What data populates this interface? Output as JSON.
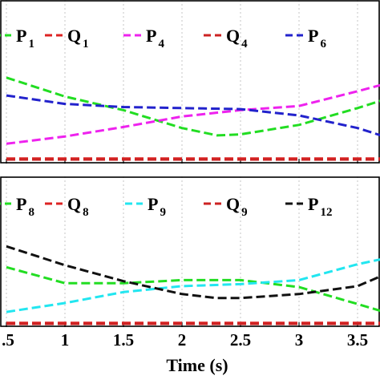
{
  "chart_data": [
    {
      "type": "line",
      "panel": "top",
      "xlim": [
        0.5,
        3.7
      ],
      "ylim": [
        0,
        1
      ],
      "grid": true,
      "legend_placement": "top",
      "series": [
        {
          "name": "P1",
          "label_main": "P",
          "label_sub": "1",
          "color": "#22dd22",
          "x": [
            0.5,
            1.0,
            1.5,
            2.0,
            2.3,
            2.5,
            3.0,
            3.5,
            3.7
          ],
          "y": [
            0.78,
            0.6,
            0.47,
            0.3,
            0.23,
            0.24,
            0.33,
            0.49,
            0.56
          ]
        },
        {
          "name": "Q1",
          "label_main": "Q",
          "label_sub": "1",
          "color": "#dd2222",
          "x": [
            0.5,
            1.0,
            1.5,
            2.0,
            2.5,
            3.0,
            3.5,
            3.7
          ],
          "y": [
            0.01,
            0.01,
            0.01,
            0.01,
            0.01,
            0.01,
            0.01,
            0.01
          ]
        },
        {
          "name": "P4",
          "label_main": "P",
          "label_sub": "4",
          "color": "#ee22ee",
          "x": [
            0.5,
            1.0,
            1.5,
            2.0,
            2.5,
            3.0,
            3.5,
            3.7
          ],
          "y": [
            0.15,
            0.22,
            0.31,
            0.41,
            0.47,
            0.51,
            0.65,
            0.71
          ]
        },
        {
          "name": "Q4",
          "label_main": "Q",
          "label_sub": "4",
          "color": "#cc2222",
          "x": [
            0.5,
            1.0,
            1.5,
            2.0,
            2.5,
            3.0,
            3.5,
            3.7
          ],
          "y": [
            0.0,
            0.0,
            0.0,
            0.0,
            0.0,
            0.0,
            0.0,
            0.0
          ]
        },
        {
          "name": "P6",
          "label_main": "P",
          "label_sub": "6",
          "color": "#2222cc",
          "x": [
            0.5,
            1.0,
            1.5,
            2.0,
            2.5,
            3.0,
            3.5,
            3.7
          ],
          "y": [
            0.61,
            0.53,
            0.5,
            0.49,
            0.48,
            0.42,
            0.3,
            0.23
          ]
        }
      ]
    },
    {
      "type": "line",
      "panel": "bottom",
      "xlim": [
        0.5,
        3.7
      ],
      "ylim": [
        0,
        1
      ],
      "xlabel": "Time (s)",
      "xticks": [
        0.5,
        1,
        1.5,
        2,
        2.5,
        3,
        3.5
      ],
      "xtick_labels": [
        ".5",
        "1",
        "1.5",
        "2",
        "2.5",
        "3",
        "3.5"
      ],
      "grid": true,
      "legend_placement": "top",
      "series": [
        {
          "name": "P8",
          "label_main": "P",
          "label_sub": "8",
          "color": "#22dd22",
          "x": [
            0.5,
            1.0,
            1.5,
            2.0,
            2.5,
            3.0,
            3.5,
            3.7
          ],
          "y": [
            0.57,
            0.41,
            0.41,
            0.44,
            0.44,
            0.37,
            0.2,
            0.13
          ]
        },
        {
          "name": "Q8",
          "label_main": "Q",
          "label_sub": "8",
          "color": "#dd2222",
          "x": [
            0.5,
            1.0,
            1.5,
            2.0,
            2.5,
            3.0,
            3.5,
            3.7
          ],
          "y": [
            0.01,
            0.01,
            0.01,
            0.01,
            0.01,
            0.01,
            0.01,
            0.01
          ]
        },
        {
          "name": "P9",
          "label_main": "P",
          "label_sub": "9",
          "color": "#22e6f0",
          "x": [
            0.5,
            1.0,
            1.5,
            2.0,
            2.5,
            3.0,
            3.5,
            3.7
          ],
          "y": [
            0.12,
            0.21,
            0.32,
            0.38,
            0.4,
            0.44,
            0.6,
            0.65
          ]
        },
        {
          "name": "Q9",
          "label_main": "Q",
          "label_sub": "9",
          "color": "#cc2222",
          "x": [
            0.5,
            1.0,
            1.5,
            2.0,
            2.5,
            3.0,
            3.5,
            3.7
          ],
          "y": [
            0.0,
            0.0,
            0.0,
            0.0,
            0.0,
            0.0,
            0.0,
            0.0
          ]
        },
        {
          "name": "P12",
          "label_main": "P",
          "label_sub": "12",
          "color": "#111111",
          "x": [
            0.5,
            1.0,
            1.5,
            2.0,
            2.3,
            2.5,
            3.0,
            3.5,
            3.7
          ],
          "y": [
            0.78,
            0.59,
            0.43,
            0.3,
            0.26,
            0.26,
            0.3,
            0.38,
            0.48
          ]
        }
      ]
    }
  ]
}
